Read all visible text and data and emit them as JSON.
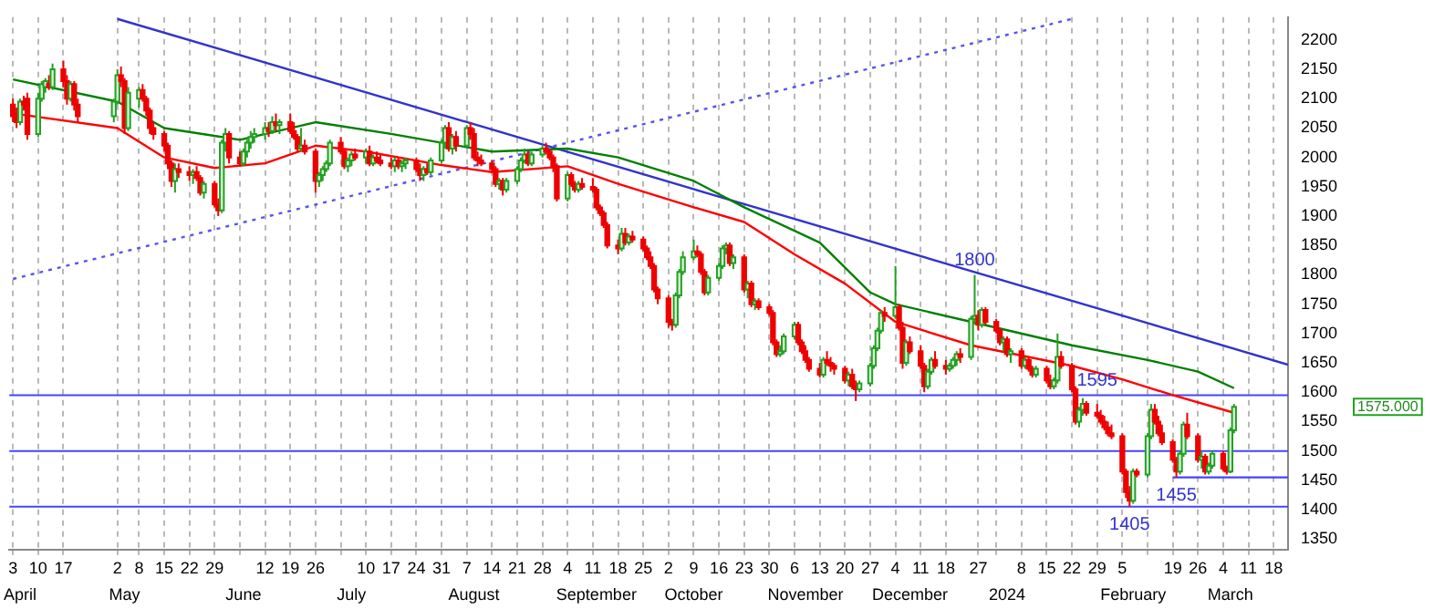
{
  "chart_data": {
    "type": "candlestick",
    "x": [
      "2023-04-03",
      "2023-04-04",
      "2023-04-05",
      "2023-04-06",
      "2023-04-07",
      "2023-04-10",
      "2023-04-11",
      "2023-04-12",
      "2023-04-13",
      "2023-04-14",
      "2023-04-17",
      "2023-04-18",
      "2023-04-19",
      "2023-04-20",
      "2023-04-21",
      "2023-05-01",
      "2023-05-02",
      "2023-05-03",
      "2023-05-04",
      "2023-05-05",
      "2023-05-08",
      "2023-05-09",
      "2023-05-10",
      "2023-05-11",
      "2023-05-12",
      "2023-05-15",
      "2023-05-16",
      "2023-05-17",
      "2023-05-18",
      "2023-05-19",
      "2023-05-22",
      "2023-05-23",
      "2023-05-24",
      "2023-05-25",
      "2023-05-26",
      "2023-05-29",
      "2023-05-30",
      "2023-05-31",
      "2023-06-01",
      "2023-06-02",
      "2023-06-05",
      "2023-06-06",
      "2023-06-07",
      "2023-06-08",
      "2023-06-09",
      "2023-06-12",
      "2023-06-13",
      "2023-06-14",
      "2023-06-15",
      "2023-06-16",
      "2023-06-19",
      "2023-06-20",
      "2023-06-21",
      "2023-06-22",
      "2023-06-23",
      "2023-06-26",
      "2023-06-27",
      "2023-06-28",
      "2023-06-29",
      "2023-06-30",
      "2023-07-03",
      "2023-07-04",
      "2023-07-05",
      "2023-07-06",
      "2023-07-07",
      "2023-07-10",
      "2023-07-11",
      "2023-07-12",
      "2023-07-13",
      "2023-07-14",
      "2023-07-17",
      "2023-07-18",
      "2023-07-19",
      "2023-07-20",
      "2023-07-21",
      "2023-07-24",
      "2023-07-25",
      "2023-07-26",
      "2023-07-27",
      "2023-07-28",
      "2023-07-31",
      "2023-08-01",
      "2023-08-02",
      "2023-08-03",
      "2023-08-04",
      "2023-08-07",
      "2023-08-08",
      "2023-08-09",
      "2023-08-10",
      "2023-08-11",
      "2023-08-14",
      "2023-08-15",
      "2023-08-16",
      "2023-08-17",
      "2023-08-18",
      "2023-08-21",
      "2023-08-22",
      "2023-08-23",
      "2023-08-24",
      "2023-08-25",
      "2023-08-28",
      "2023-08-29",
      "2023-08-30",
      "2023-08-31",
      "2023-09-01",
      "2023-09-04",
      "2023-09-05",
      "2023-09-06",
      "2023-09-07",
      "2023-09-08",
      "2023-09-11",
      "2023-09-12",
      "2023-09-13",
      "2023-09-14",
      "2023-09-15",
      "2023-09-18",
      "2023-09-19",
      "2023-09-20",
      "2023-09-21",
      "2023-09-22",
      "2023-09-25",
      "2023-09-26",
      "2023-09-27",
      "2023-09-28",
      "2023-09-29",
      "2023-10-02",
      "2023-10-03",
      "2023-10-04",
      "2023-10-05",
      "2023-10-06",
      "2023-10-09",
      "2023-10-10",
      "2023-10-11",
      "2023-10-12",
      "2023-10-13",
      "2023-10-16",
      "2023-10-17",
      "2023-10-18",
      "2023-10-19",
      "2023-10-20",
      "2023-10-23",
      "2023-10-24",
      "2023-10-25",
      "2023-10-26",
      "2023-10-27",
      "2023-10-30",
      "2023-10-31",
      "2023-11-01",
      "2023-11-02",
      "2023-11-03",
      "2023-11-06",
      "2023-11-07",
      "2023-11-08",
      "2023-11-09",
      "2023-11-10",
      "2023-11-13",
      "2023-11-14",
      "2023-11-15",
      "2023-11-16",
      "2023-11-17",
      "2023-11-20",
      "2023-11-21",
      "2023-11-22",
      "2023-11-23",
      "2023-11-24",
      "2023-11-27",
      "2023-11-28",
      "2023-11-29",
      "2023-11-30",
      "2023-12-01",
      "2023-12-04",
      "2023-12-05",
      "2023-12-06",
      "2023-12-07",
      "2023-12-08",
      "2023-12-11",
      "2023-12-12",
      "2023-12-13",
      "2023-12-14",
      "2023-12-15",
      "2023-12-18",
      "2023-12-19",
      "2023-12-20",
      "2023-12-21",
      "2023-12-22",
      "2023-12-25",
      "2023-12-26",
      "2023-12-27",
      "2023-12-28",
      "2023-12-29",
      "2024-01-01",
      "2024-01-02",
      "2024-01-03",
      "2024-01-04",
      "2024-01-05",
      "2024-01-08",
      "2024-01-09",
      "2024-01-10",
      "2024-01-11",
      "2024-01-12",
      "2024-01-15",
      "2024-01-16",
      "2024-01-17",
      "2024-01-18",
      "2024-01-19",
      "2024-01-22",
      "2024-01-23",
      "2024-01-24",
      "2024-01-25",
      "2024-01-26",
      "2024-01-29",
      "2024-01-30",
      "2024-01-31",
      "2024-02-01",
      "2024-02-02",
      "2024-02-05",
      "2024-02-06",
      "2024-02-07",
      "2024-02-08",
      "2024-02-09",
      "2024-02-12",
      "2024-02-13",
      "2024-02-14",
      "2024-02-15",
      "2024-02-16",
      "2024-02-19",
      "2024-02-20",
      "2024-02-21",
      "2024-02-22",
      "2024-02-23",
      "2024-02-26",
      "2024-02-27",
      "2024-02-28",
      "2024-02-29",
      "2024-03-01",
      "2024-03-04",
      "2024-03-05",
      "2024-03-06",
      "2024-03-07"
    ],
    "ohlc": [
      [
        2090,
        2100,
        2060,
        2070
      ],
      [
        2070,
        2085,
        2050,
        2060
      ],
      [
        2060,
        2100,
        2055,
        2095
      ],
      [
        2095,
        2105,
        2080,
        2090
      ],
      [
        2100,
        2110,
        2030,
        2040
      ],
      [
        2040,
        2110,
        2035,
        2100
      ],
      [
        2100,
        2130,
        2095,
        2125
      ],
      [
        2120,
        2135,
        2110,
        2130
      ],
      [
        2125,
        2140,
        2115,
        2120
      ],
      [
        2120,
        2160,
        2115,
        2150
      ],
      [
        2150,
        2165,
        2120,
        2130
      ],
      [
        2130,
        2140,
        2090,
        2100
      ],
      [
        2100,
        2130,
        2095,
        2125
      ],
      [
        2125,
        2130,
        2080,
        2090
      ],
      [
        2090,
        2100,
        2060,
        2070
      ],
      [
        2070,
        2100,
        2060,
        2095
      ],
      [
        2095,
        2150,
        2090,
        2140
      ],
      [
        2140,
        2155,
        2120,
        2130
      ],
      [
        2130,
        2135,
        2040,
        2050
      ],
      [
        2050,
        2120,
        2045,
        2110
      ],
      [
        2100,
        2120,
        2085,
        2115
      ],
      [
        2115,
        2125,
        2095,
        2100
      ],
      [
        2100,
        2105,
        2070,
        2080
      ],
      [
        2080,
        2085,
        2040,
        2050
      ],
      [
        2050,
        2060,
        2030,
        2040
      ],
      [
        2040,
        2045,
        2010,
        2020
      ],
      [
        2020,
        2025,
        1980,
        1990
      ],
      [
        1990,
        1995,
        1950,
        1960
      ],
      [
        1960,
        1990,
        1940,
        1980
      ],
      [
        1980,
        1990,
        1965,
        1975
      ],
      [
        1975,
        1985,
        1960,
        1970
      ],
      [
        1970,
        1980,
        1955,
        1975
      ],
      [
        1975,
        1985,
        1960,
        1965
      ],
      [
        1965,
        1970,
        1935,
        1940
      ],
      [
        1940,
        1960,
        1930,
        1955
      ],
      [
        1955,
        1960,
        1915,
        1920
      ],
      [
        1920,
        1930,
        1900,
        1910
      ],
      [
        1910,
        2030,
        1905,
        2025
      ],
      [
        2025,
        2050,
        2010,
        2040
      ],
      [
        2040,
        2045,
        1990,
        2000
      ],
      [
        2000,
        2010,
        1985,
        1990
      ],
      [
        1990,
        2015,
        1985,
        2010
      ],
      [
        2010,
        2030,
        2000,
        2025
      ],
      [
        2025,
        2045,
        2015,
        2035
      ],
      [
        2035,
        2050,
        2025,
        2040
      ],
      [
        2040,
        2060,
        2030,
        2050
      ],
      [
        2050,
        2060,
        2035,
        2045
      ],
      [
        2045,
        2070,
        2040,
        2060
      ],
      [
        2060,
        2075,
        2045,
        2055
      ],
      [
        2055,
        2065,
        2040,
        2060
      ],
      [
        2060,
        2075,
        2040,
        2045
      ],
      [
        2045,
        2060,
        2030,
        2035
      ],
      [
        2035,
        2040,
        2010,
        2015
      ],
      [
        2015,
        2050,
        2010,
        2020
      ],
      [
        2020,
        2030,
        2005,
        2010
      ],
      [
        2010,
        2015,
        1940,
        1960
      ],
      [
        1960,
        1975,
        1950,
        1970
      ],
      [
        1970,
        1985,
        1960,
        1980
      ],
      [
        1980,
        1995,
        1975,
        1990
      ],
      [
        1990,
        2030,
        1985,
        2025
      ],
      [
        2025,
        2035,
        2005,
        2010
      ],
      [
        2010,
        2015,
        1980,
        1985
      ],
      [
        1985,
        2000,
        1975,
        1995
      ],
      [
        1995,
        2010,
        1985,
        2005
      ],
      [
        2005,
        2015,
        1995,
        2000
      ],
      [
        2000,
        2015,
        1990,
        2010
      ],
      [
        2010,
        2020,
        1985,
        1990
      ],
      [
        1990,
        2005,
        1985,
        2000
      ],
      [
        2000,
        2010,
        1990,
        1995
      ],
      [
        1995,
        2005,
        1985,
        1990
      ],
      [
        1990,
        2000,
        1980,
        1985
      ],
      [
        1985,
        2000,
        1975,
        1995
      ],
      [
        1995,
        2000,
        1980,
        1985
      ],
      [
        1985,
        1995,
        1975,
        1990
      ],
      [
        1990,
        2000,
        1980,
        1995
      ],
      [
        1995,
        2000,
        1975,
        1980
      ],
      [
        1980,
        1990,
        1960,
        1970
      ],
      [
        1970,
        1985,
        1960,
        1980
      ],
      [
        1980,
        1990,
        1970,
        1975
      ],
      [
        1975,
        2000,
        1970,
        1995
      ],
      [
        1995,
        2030,
        1990,
        2025
      ],
      [
        2025,
        2055,
        2015,
        2050
      ],
      [
        2050,
        2060,
        2010,
        2015
      ],
      [
        2015,
        2040,
        2005,
        2035
      ],
      [
        2035,
        2045,
        2010,
        2020
      ],
      [
        2020,
        2055,
        2015,
        2050
      ],
      [
        2050,
        2060,
        2030,
        2040
      ],
      [
        2040,
        2050,
        1995,
        2000
      ],
      [
        2000,
        2010,
        1985,
        1995
      ],
      [
        1995,
        2005,
        1985,
        1990
      ],
      [
        1990,
        1995,
        1975,
        1980
      ],
      [
        1980,
        1985,
        1950,
        1955
      ],
      [
        1955,
        1965,
        1945,
        1960
      ],
      [
        1960,
        1965,
        1935,
        1945
      ],
      [
        1945,
        1965,
        1940,
        1960
      ],
      [
        1960,
        1985,
        1955,
        1980
      ],
      [
        1980,
        2000,
        1975,
        1995
      ],
      [
        1995,
        2015,
        1990,
        2005
      ],
      [
        2005,
        2010,
        1985,
        1990
      ],
      [
        1990,
        2010,
        1985,
        2005
      ],
      [
        2005,
        2020,
        2000,
        2015
      ],
      [
        2015,
        2025,
        2005,
        2010
      ],
      [
        2010,
        2015,
        1995,
        2000
      ],
      [
        2000,
        2005,
        1975,
        1985
      ],
      [
        1985,
        1990,
        1925,
        1930
      ],
      [
        1930,
        1975,
        1925,
        1970
      ],
      [
        1970,
        1975,
        1950,
        1955
      ],
      [
        1955,
        1960,
        1940,
        1945
      ],
      [
        1945,
        1960,
        1940,
        1955
      ],
      [
        1955,
        1965,
        1945,
        1950
      ],
      [
        1950,
        1965,
        1940,
        1945
      ],
      [
        1945,
        1950,
        1910,
        1915
      ],
      [
        1915,
        1920,
        1900,
        1905
      ],
      [
        1905,
        1910,
        1880,
        1885
      ],
      [
        1885,
        1890,
        1845,
        1850
      ],
      [
        1850,
        1860,
        1835,
        1845
      ],
      [
        1845,
        1880,
        1840,
        1870
      ],
      [
        1870,
        1880,
        1850,
        1855
      ],
      [
        1855,
        1870,
        1850,
        1865
      ],
      [
        1865,
        1875,
        1855,
        1860
      ],
      [
        1860,
        1865,
        1840,
        1845
      ],
      [
        1845,
        1850,
        1825,
        1830
      ],
      [
        1830,
        1840,
        1810,
        1815
      ],
      [
        1815,
        1820,
        1770,
        1775
      ],
      [
        1775,
        1780,
        1750,
        1760
      ],
      [
        1760,
        1765,
        1710,
        1720
      ],
      [
        1720,
        1725,
        1705,
        1715
      ],
      [
        1715,
        1770,
        1710,
        1765
      ],
      [
        1765,
        1810,
        1760,
        1805
      ],
      [
        1805,
        1840,
        1800,
        1830
      ],
      [
        1830,
        1860,
        1825,
        1840
      ],
      [
        1840,
        1850,
        1830,
        1835
      ],
      [
        1835,
        1840,
        1800,
        1805
      ],
      [
        1805,
        1810,
        1765,
        1770
      ],
      [
        1770,
        1800,
        1765,
        1795
      ],
      [
        1795,
        1820,
        1790,
        1815
      ],
      [
        1815,
        1850,
        1810,
        1845
      ],
      [
        1845,
        1855,
        1835,
        1850
      ],
      [
        1850,
        1855,
        1815,
        1820
      ],
      [
        1820,
        1835,
        1810,
        1830
      ],
      [
        1830,
        1835,
        1770,
        1775
      ],
      [
        1775,
        1790,
        1760,
        1785
      ],
      [
        1785,
        1790,
        1745,
        1750
      ],
      [
        1750,
        1760,
        1740,
        1755
      ],
      [
        1755,
        1760,
        1740,
        1745
      ],
      [
        1745,
        1750,
        1730,
        1735
      ],
      [
        1735,
        1740,
        1680,
        1685
      ],
      [
        1685,
        1690,
        1660,
        1665
      ],
      [
        1665,
        1680,
        1660,
        1670
      ],
      [
        1670,
        1700,
        1665,
        1695
      ],
      [
        1695,
        1720,
        1690,
        1715
      ],
      [
        1715,
        1720,
        1680,
        1685
      ],
      [
        1685,
        1690,
        1665,
        1670
      ],
      [
        1670,
        1680,
        1650,
        1655
      ],
      [
        1655,
        1660,
        1635,
        1640
      ],
      [
        1640,
        1650,
        1625,
        1630
      ],
      [
        1630,
        1660,
        1625,
        1655
      ],
      [
        1655,
        1670,
        1645,
        1650
      ],
      [
        1650,
        1660,
        1635,
        1645
      ],
      [
        1645,
        1650,
        1630,
        1640
      ],
      [
        1640,
        1645,
        1615,
        1620
      ],
      [
        1620,
        1635,
        1610,
        1630
      ],
      [
        1630,
        1640,
        1605,
        1610
      ],
      [
        1610,
        1620,
        1585,
        1605
      ],
      [
        1605,
        1620,
        1600,
        1615
      ],
      [
        1615,
        1650,
        1610,
        1645
      ],
      [
        1645,
        1680,
        1640,
        1675
      ],
      [
        1675,
        1710,
        1670,
        1705
      ],
      [
        1705,
        1740,
        1700,
        1735
      ],
      [
        1735,
        1745,
        1720,
        1730
      ],
      [
        1730,
        1815,
        1725,
        1745
      ],
      [
        1745,
        1750,
        1705,
        1710
      ],
      [
        1710,
        1720,
        1640,
        1650
      ],
      [
        1650,
        1690,
        1645,
        1685
      ],
      [
        1685,
        1695,
        1665,
        1670
      ],
      [
        1670,
        1680,
        1640,
        1645
      ],
      [
        1645,
        1650,
        1600,
        1610
      ],
      [
        1610,
        1640,
        1605,
        1635
      ],
      [
        1635,
        1660,
        1630,
        1655
      ],
      [
        1655,
        1670,
        1640,
        1645
      ],
      [
        1645,
        1655,
        1630,
        1640
      ],
      [
        1640,
        1650,
        1635,
        1645
      ],
      [
        1645,
        1660,
        1640,
        1655
      ],
      [
        1655,
        1670,
        1645,
        1665
      ],
      [
        1665,
        1675,
        1650,
        1660
      ],
      [
        1660,
        1730,
        1655,
        1725
      ],
      [
        1725,
        1800,
        1715,
        1730
      ],
      [
        1730,
        1740,
        1705,
        1715
      ],
      [
        1715,
        1745,
        1710,
        1740
      ],
      [
        1740,
        1745,
        1715,
        1720
      ],
      [
        1720,
        1725,
        1700,
        1705
      ],
      [
        1705,
        1710,
        1680,
        1685
      ],
      [
        1685,
        1695,
        1670,
        1690
      ],
      [
        1690,
        1695,
        1660,
        1665
      ],
      [
        1665,
        1675,
        1650,
        1670
      ],
      [
        1670,
        1675,
        1640,
        1645
      ],
      [
        1645,
        1660,
        1640,
        1655
      ],
      [
        1655,
        1660,
        1635,
        1640
      ],
      [
        1640,
        1645,
        1625,
        1630
      ],
      [
        1630,
        1645,
        1625,
        1640
      ],
      [
        1640,
        1645,
        1615,
        1620
      ],
      [
        1620,
        1630,
        1605,
        1610
      ],
      [
        1610,
        1625,
        1605,
        1620
      ],
      [
        1620,
        1700,
        1615,
        1660
      ],
      [
        1660,
        1670,
        1640,
        1645
      ],
      [
        1645,
        1650,
        1600,
        1605
      ],
      [
        1605,
        1610,
        1545,
        1550
      ],
      [
        1550,
        1575,
        1540,
        1570
      ],
      [
        1570,
        1590,
        1560,
        1580
      ],
      [
        1580,
        1585,
        1560,
        1565
      ],
      [
        1565,
        1580,
        1555,
        1560
      ],
      [
        1560,
        1570,
        1545,
        1550
      ],
      [
        1550,
        1560,
        1535,
        1540
      ],
      [
        1540,
        1550,
        1525,
        1530
      ],
      [
        1530,
        1545,
        1520,
        1525
      ],
      [
        1525,
        1530,
        1460,
        1465
      ],
      [
        1465,
        1470,
        1420,
        1430
      ],
      [
        1430,
        1440,
        1405,
        1415
      ],
      [
        1415,
        1470,
        1410,
        1465
      ],
      [
        1465,
        1470,
        1455,
        1460
      ],
      [
        1460,
        1530,
        1455,
        1525
      ],
      [
        1525,
        1580,
        1520,
        1570
      ],
      [
        1570,
        1580,
        1545,
        1550
      ],
      [
        1550,
        1560,
        1525,
        1530
      ],
      [
        1530,
        1545,
        1510,
        1515
      ],
      [
        1515,
        1520,
        1480,
        1485
      ],
      [
        1485,
        1490,
        1455,
        1465
      ],
      [
        1465,
        1500,
        1460,
        1495
      ],
      [
        1495,
        1550,
        1490,
        1545
      ],
      [
        1545,
        1565,
        1520,
        1525
      ],
      [
        1525,
        1530,
        1480,
        1485
      ],
      [
        1485,
        1500,
        1470,
        1490
      ],
      [
        1490,
        1495,
        1460,
        1465
      ],
      [
        1465,
        1480,
        1460,
        1475
      ],
      [
        1475,
        1500,
        1470,
        1495
      ],
      [
        1495,
        1500,
        1465,
        1470
      ],
      [
        1470,
        1475,
        1460,
        1465
      ],
      [
        1465,
        1540,
        1462,
        1535
      ],
      [
        1535,
        1580,
        1530,
        1575
      ]
    ],
    "series": [
      {
        "type": "line",
        "color": "#008000",
        "x": [
          "2023-04-03",
          "2023-05-02",
          "2023-05-15",
          "2023-06-05",
          "2023-06-26",
          "2023-07-17",
          "2023-08-14",
          "2023-09-04",
          "2023-09-18",
          "2023-10-09",
          "2023-10-23",
          "2023-11-13",
          "2023-11-27",
          "2023-12-04",
          "2023-12-25",
          "2024-01-22",
          "2024-02-12",
          "2024-02-26",
          "2024-03-07"
        ],
        "values": [
          2133,
          2095,
          2050,
          2030,
          2060,
          2040,
          2010,
          2015,
          2000,
          1960,
          1915,
          1855,
          1770,
          1750,
          1720,
          1680,
          1655,
          1635,
          1607
        ]
      },
      {
        "type": "line",
        "color": "#ff0000",
        "x": [
          "2023-04-03",
          "2023-05-02",
          "2023-05-15",
          "2023-05-29",
          "2023-06-12",
          "2023-06-26",
          "2023-07-10",
          "2023-07-31",
          "2023-08-14",
          "2023-09-04",
          "2023-09-18",
          "2023-10-09",
          "2023-10-23",
          "2023-11-06",
          "2023-11-20",
          "2023-12-04",
          "2023-12-25",
          "2024-01-22",
          "2024-02-05",
          "2024-02-19",
          "2024-03-07"
        ],
        "values": [
          2075,
          2050,
          2000,
          1982,
          1990,
          2020,
          2010,
          1987,
          1975,
          1985,
          1955,
          1915,
          1890,
          1835,
          1785,
          1720,
          1680,
          1645,
          1622,
          1595,
          1565
        ]
      },
      {
        "type": "line",
        "color": "#3333cc",
        "x": [
          "2023-05-02",
          "2024-03-22"
        ],
        "values": [
          2236,
          1647
        ]
      },
      {
        "type": "line",
        "color": "#5555ee",
        "line_style": "dotted",
        "x": [
          "2023-04-03",
          "2024-01-22"
        ],
        "values": [
          1793,
          2236
        ]
      },
      {
        "type": "line",
        "color": "#4444ff",
        "x": [
          "2024-02-19",
          "2024-03-22"
        ],
        "values": [
          1455,
          1455
        ]
      }
    ],
    "ref_lines": [
      {
        "axis": "y",
        "value": 1595,
        "color": "#4444ff"
      },
      {
        "axis": "y",
        "value": 1500,
        "color": "#4444ff"
      },
      {
        "axis": "y",
        "value": 1405,
        "color": "#4444ff"
      }
    ],
    "annotations": [
      {
        "text": "1800",
        "x": "2023-12-26",
        "y": 1800
      },
      {
        "text": "1595",
        "x": "2024-01-29",
        "y": 1595
      },
      {
        "text": "1455",
        "x": "2024-02-20",
        "y": 1455
      },
      {
        "text": "1405",
        "x": "2024-02-07",
        "y": 1405
      },
      "1575.000"
    ],
    "xlim": [
      "2023-04-02",
      "2024-03-22"
    ],
    "xticks": [
      {
        "value": "2023-04-03",
        "label": "3"
      },
      {
        "value": "2023-04-10",
        "label": "10"
      },
      {
        "value": "2023-04-17",
        "label": "17"
      },
      {
        "value": "2023-05-02",
        "label": "2"
      },
      {
        "value": "2023-05-08",
        "label": "8"
      },
      {
        "value": "2023-05-15",
        "label": "15"
      },
      {
        "value": "2023-05-22",
        "label": "22"
      },
      {
        "value": "2023-05-29",
        "label": "29"
      },
      {
        "value": "2023-06-05",
        "label": null
      },
      {
        "value": "2023-06-12",
        "label": "12"
      },
      {
        "value": "2023-06-19",
        "label": "19"
      },
      {
        "value": "2023-06-26",
        "label": "26"
      },
      {
        "value": "2023-07-03",
        "label": null
      },
      {
        "value": "2023-07-10",
        "label": "10"
      },
      {
        "value": "2023-07-17",
        "label": "17"
      },
      {
        "value": "2023-07-24",
        "label": "24"
      },
      {
        "value": "2023-07-31",
        "label": "31"
      },
      {
        "value": "2023-08-07",
        "label": "7"
      },
      {
        "value": "2023-08-14",
        "label": "14"
      },
      {
        "value": "2023-08-21",
        "label": "21"
      },
      {
        "value": "2023-08-28",
        "label": "28"
      },
      {
        "value": "2023-09-04",
        "label": "4"
      },
      {
        "value": "2023-09-11",
        "label": "11"
      },
      {
        "value": "2023-09-18",
        "label": "18"
      },
      {
        "value": "2023-09-25",
        "label": "25"
      },
      {
        "value": "2023-10-02",
        "label": "2"
      },
      {
        "value": "2023-10-09",
        "label": "9"
      },
      {
        "value": "2023-10-16",
        "label": "16"
      },
      {
        "value": "2023-10-23",
        "label": "23"
      },
      {
        "value": "2023-10-30",
        "label": "30"
      },
      {
        "value": "2023-11-06",
        "label": "6"
      },
      {
        "value": "2023-11-13",
        "label": "13"
      },
      {
        "value": "2023-11-20",
        "label": "20"
      },
      {
        "value": "2023-11-27",
        "label": "27"
      },
      {
        "value": "2023-12-04",
        "label": "4"
      },
      {
        "value": "2023-12-11",
        "label": "11"
      },
      {
        "value": "2023-12-18",
        "label": "18"
      },
      {
        "value": "2023-12-27",
        "label": "27"
      },
      {
        "value": "2024-01-01",
        "label": null
      },
      {
        "value": "2024-01-08",
        "label": "8"
      },
      {
        "value": "2024-01-15",
        "label": "15"
      },
      {
        "value": "2024-01-22",
        "label": "22"
      },
      {
        "value": "2024-01-29",
        "label": "29"
      },
      {
        "value": "2024-02-05",
        "label": "5"
      },
      {
        "value": "2024-02-12",
        "label": null
      },
      {
        "value": "2024-02-19",
        "label": "19"
      },
      {
        "value": "2024-02-26",
        "label": "26"
      },
      {
        "value": "2024-03-04",
        "label": "4"
      },
      {
        "value": "2024-03-11",
        "label": "11"
      },
      {
        "value": "2024-03-18",
        "label": "18"
      }
    ],
    "x2lim": [
      "2023-04-02",
      "2024-03-22"
    ],
    "x2ticks": [
      {
        "value": "2023-04-05",
        "label": "April"
      },
      {
        "value": "2023-05-04",
        "label": "May"
      },
      {
        "value": "2023-06-06",
        "label": "June"
      },
      {
        "value": "2023-07-06",
        "label": "July"
      },
      {
        "value": "2023-08-09",
        "label": "August"
      },
      {
        "value": "2023-09-12",
        "label": "September"
      },
      {
        "value": "2023-10-09",
        "label": "October"
      },
      {
        "value": "2023-11-09",
        "label": "November"
      },
      {
        "value": "2023-12-08",
        "label": "December"
      },
      {
        "value": "2024-01-04",
        "label": "2024"
      },
      {
        "value": "2024-02-08",
        "label": "February"
      },
      {
        "value": "2024-03-06",
        "label": "March"
      }
    ],
    "ylim": [
      1332,
      2239
    ],
    "yticks": [
      1350,
      1400,
      1450,
      1500,
      1550,
      1600,
      1650,
      1700,
      1750,
      1800,
      1850,
      1900,
      1950,
      2000,
      2050,
      2100,
      2150,
      2200
    ],
    "grid": "x",
    "legend": false
  }
}
